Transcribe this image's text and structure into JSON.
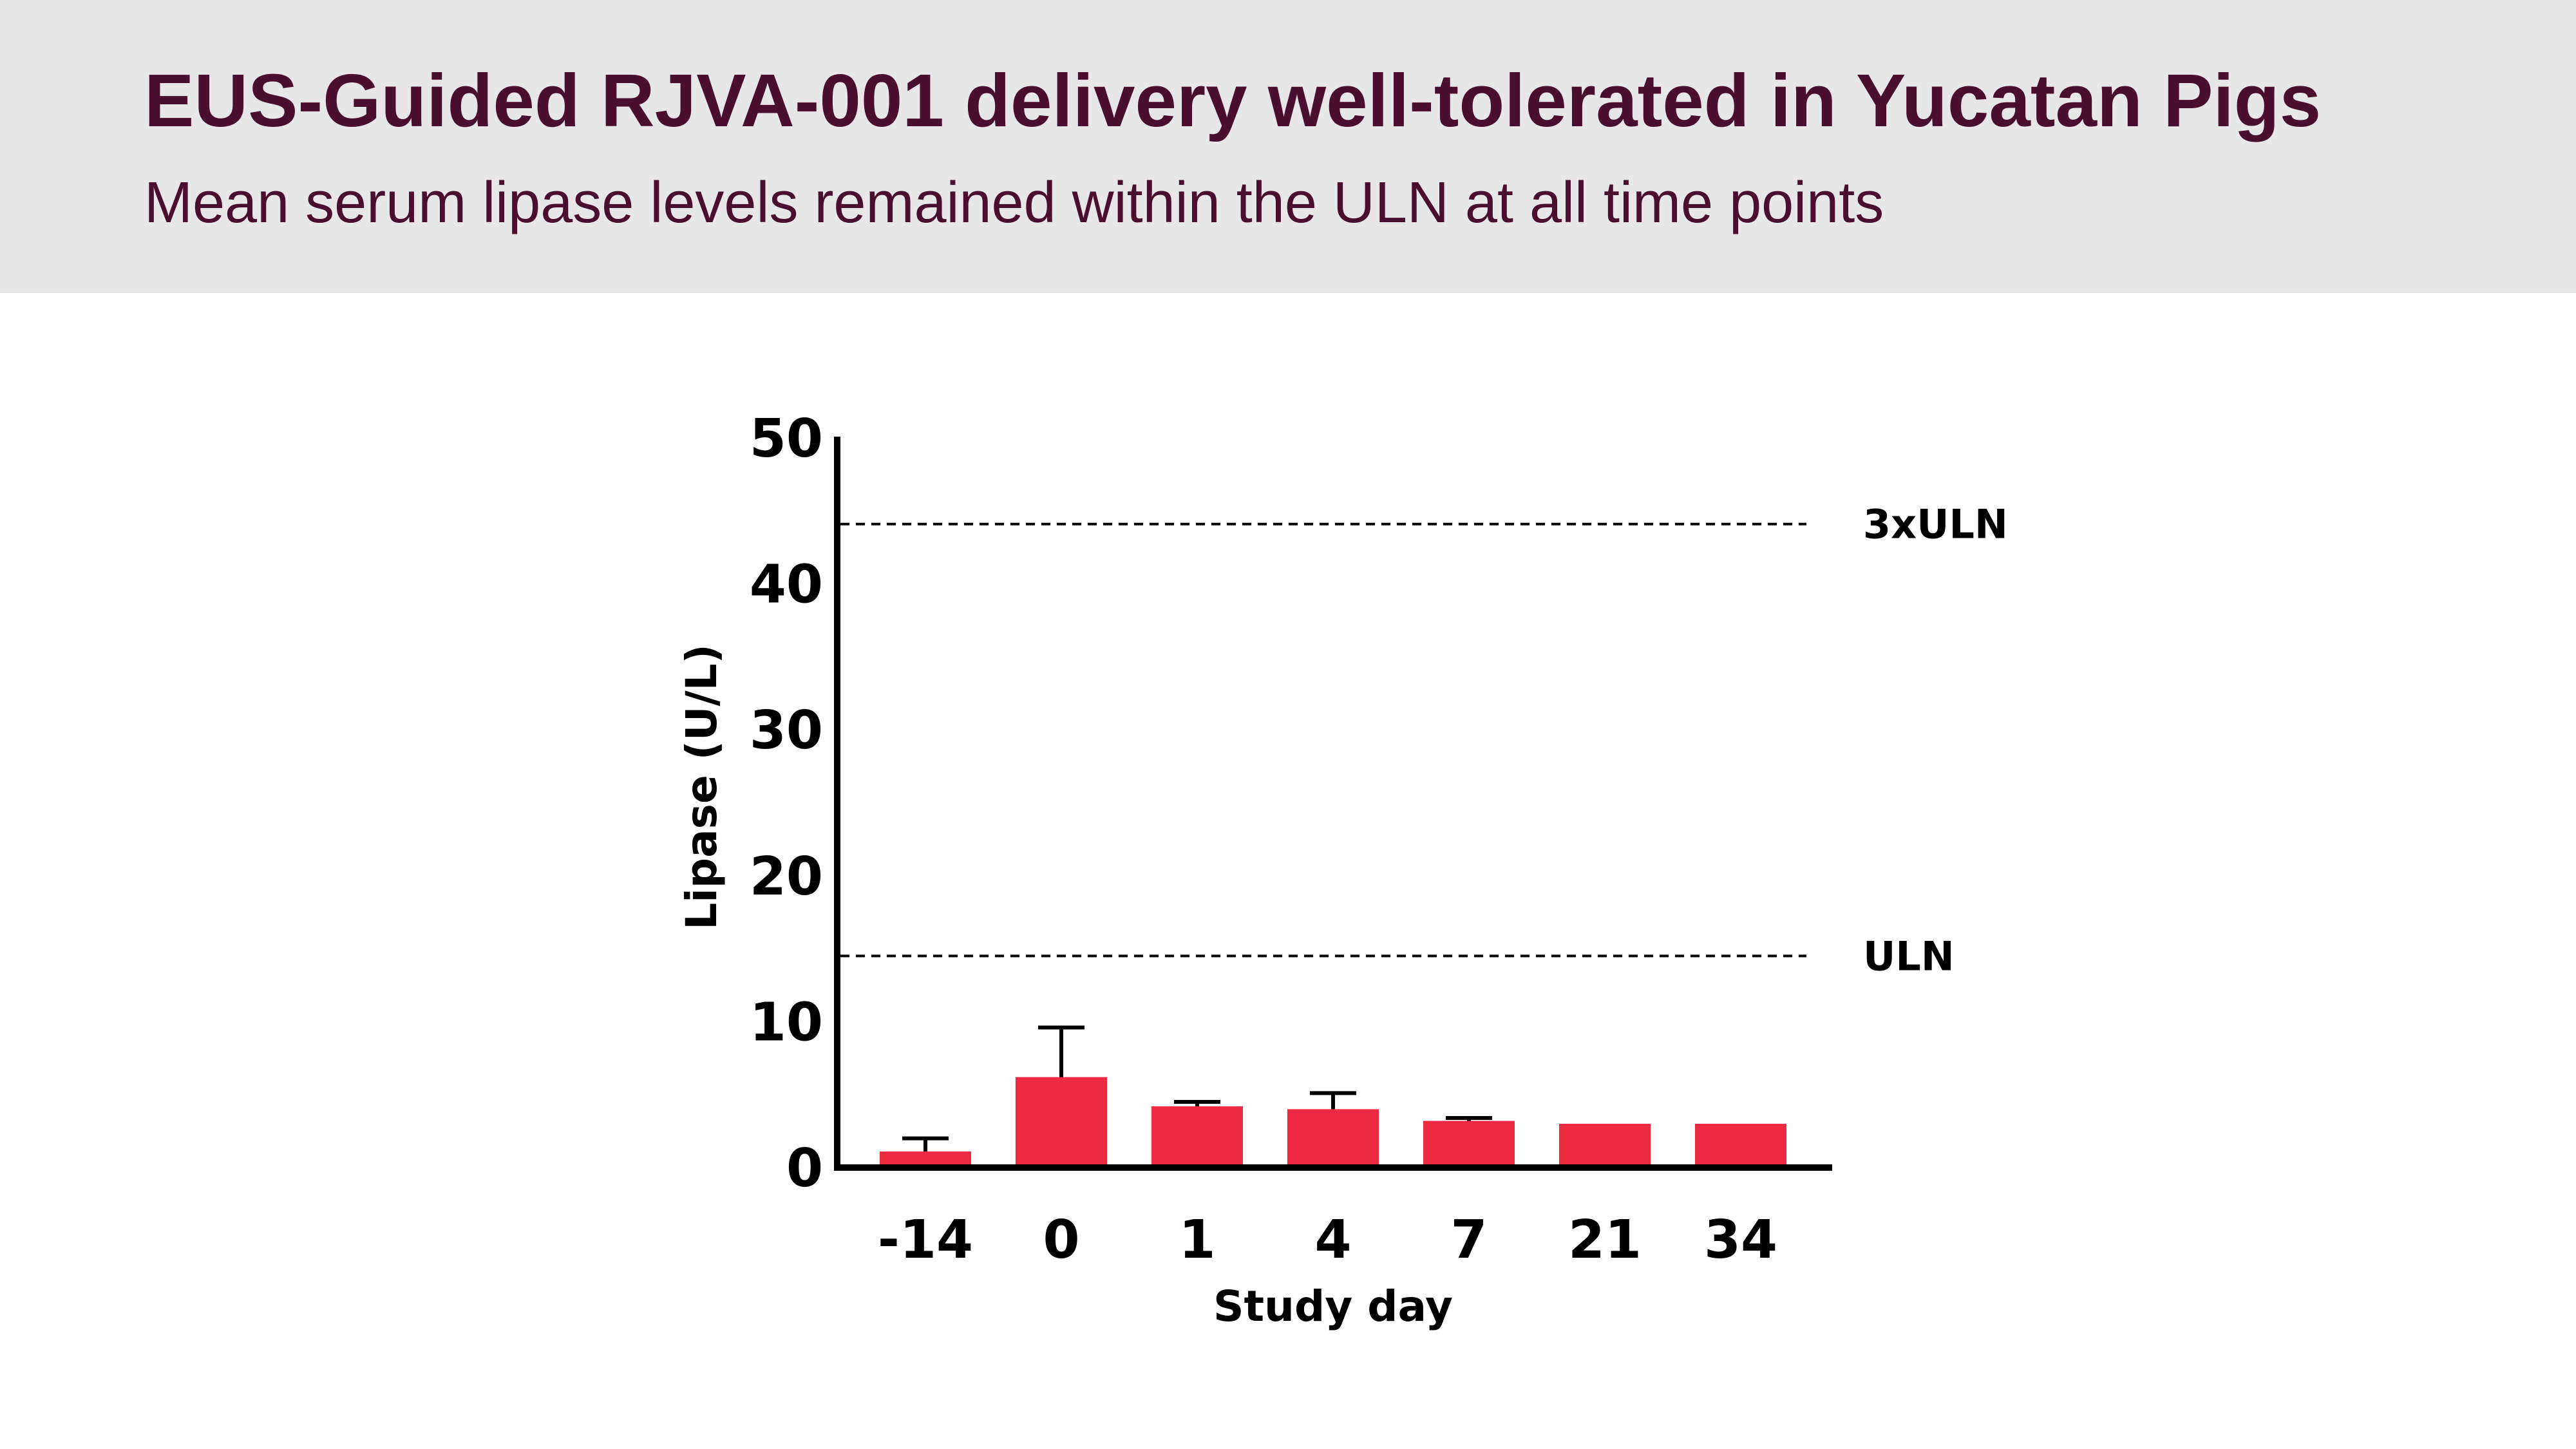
{
  "header": {
    "title": "EUS-Guided RJVA-001 delivery well-tolerated in Yucatan Pigs",
    "subtitle": "Mean serum lipase levels remained within the ULN at all time points"
  },
  "colors": {
    "header_band": "#e8e7e7",
    "title_text": "#4a0e2e",
    "bar": "#ee2a42",
    "axis": "#000000"
  },
  "chart_data": {
    "type": "bar",
    "xlabel": "Study day",
    "ylabel": "Lipase (U/L)",
    "ylim": [
      0,
      50
    ],
    "yticks": [
      0,
      10,
      20,
      30,
      40,
      50
    ],
    "grid": false,
    "categories": [
      "-14",
      "0",
      "1",
      "4",
      "7",
      "21",
      "34"
    ],
    "values": [
      1.1,
      6.2,
      4.2,
      4.0,
      3.2,
      3.0,
      3.0
    ],
    "error_upper": [
      2.0,
      9.6,
      4.5,
      5.1,
      3.4,
      null,
      null
    ],
    "reference_lines": [
      {
        "label": "3xULN",
        "value": 44.1,
        "style": "dashed"
      },
      {
        "label": "ULN",
        "value": 14.5,
        "style": "dashed"
      }
    ]
  }
}
